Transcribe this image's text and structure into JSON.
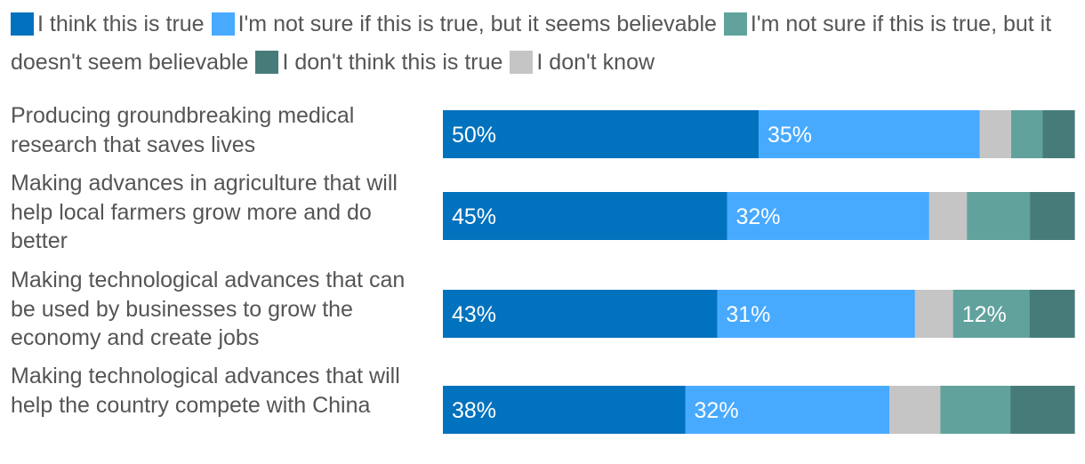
{
  "chart_data": {
    "type": "bar",
    "orientation": "horizontal",
    "stacked": true,
    "normalized": true,
    "legend_position": "top",
    "grid": false,
    "categories": [
      "Producing groundbreaking medical research that saves lives",
      "Making advances in agriculture that will help local farmers grow more and do better",
      "Making technological advances that can be used by businesses to grow the economy and create jobs",
      "Making technological advances that will help the country compete with China"
    ],
    "series": [
      {
        "name": "I think this is true",
        "color": "#0172BD",
        "values": [
          50,
          45,
          43,
          38
        ],
        "labels": [
          "50%",
          "45%",
          "43%",
          "38%"
        ]
      },
      {
        "name": "I'm not sure if this is true, but it seems believable",
        "color": "#48AAFF",
        "values": [
          35,
          32,
          31,
          32
        ],
        "labels": [
          "35%",
          "32%",
          "31%",
          "32%"
        ]
      },
      {
        "name": "I don't know",
        "color": "#C5C5C5",
        "values": [
          5,
          6,
          6,
          8
        ],
        "labels": [
          "",
          "",
          "",
          ""
        ]
      },
      {
        "name": "I'm not sure if this is true, but it doesn't seem believable",
        "color": "#61A29D",
        "values": [
          5,
          10,
          12,
          11
        ],
        "labels": [
          "",
          "",
          "12%",
          ""
        ]
      },
      {
        "name": "I don't think this is true",
        "color": "#477B79",
        "values": [
          5,
          7,
          7,
          10
        ],
        "labels": [
          "",
          "",
          "",
          ""
        ]
      }
    ],
    "legend_order": [
      0,
      1,
      3,
      4,
      2
    ]
  }
}
